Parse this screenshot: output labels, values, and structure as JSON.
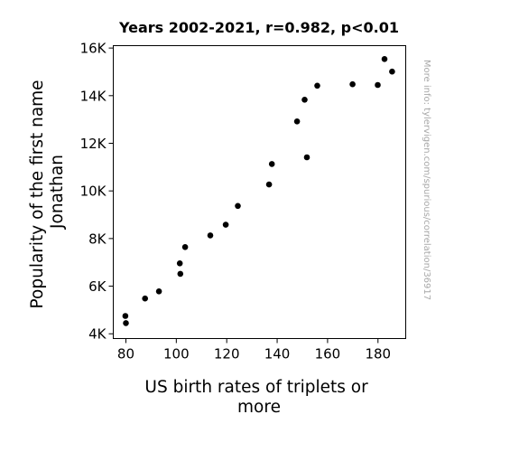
{
  "chart_data": {
    "type": "scatter",
    "title": "Years 2002-2021, r=0.982, p<0.01",
    "xlabel": [
      "US birth rates of triplets or",
      "more"
    ],
    "ylabel": [
      "Popularity of the first name",
      "Jonathan"
    ],
    "xlim": [
      75,
      191
    ],
    "ylim": [
      3800,
      16100
    ],
    "xticks": [
      {
        "value": 80,
        "label": "80"
      },
      {
        "value": 100,
        "label": "100"
      },
      {
        "value": 120,
        "label": "120"
      },
      {
        "value": 140,
        "label": "140"
      },
      {
        "value": 160,
        "label": "160"
      },
      {
        "value": 180,
        "label": "180"
      }
    ],
    "yticks": [
      {
        "value": 4000,
        "label": "4K"
      },
      {
        "value": 6000,
        "label": "6K"
      },
      {
        "value": 8000,
        "label": "8K"
      },
      {
        "value": 10000,
        "label": "10K"
      },
      {
        "value": 12000,
        "label": "12K"
      },
      {
        "value": 14000,
        "label": "14K"
      },
      {
        "value": 16000,
        "label": "16K"
      }
    ],
    "grid": false,
    "legend": "none",
    "marker_color": "#000000",
    "points": [
      {
        "x": 79.8,
        "y": 4750
      },
      {
        "x": 80.0,
        "y": 4450
      },
      {
        "x": 87.6,
        "y": 5480
      },
      {
        "x": 93.1,
        "y": 5780
      },
      {
        "x": 101.4,
        "y": 6960
      },
      {
        "x": 101.6,
        "y": 6520
      },
      {
        "x": 103.5,
        "y": 7640
      },
      {
        "x": 113.5,
        "y": 8130
      },
      {
        "x": 119.6,
        "y": 8580
      },
      {
        "x": 124.4,
        "y": 9370
      },
      {
        "x": 136.8,
        "y": 10270
      },
      {
        "x": 137.9,
        "y": 11130
      },
      {
        "x": 147.9,
        "y": 12920
      },
      {
        "x": 150.9,
        "y": 13830
      },
      {
        "x": 151.8,
        "y": 11410
      },
      {
        "x": 155.9,
        "y": 14420
      },
      {
        "x": 169.9,
        "y": 14480
      },
      {
        "x": 179.9,
        "y": 14450
      },
      {
        "x": 182.6,
        "y": 15540
      },
      {
        "x": 185.6,
        "y": 15010
      }
    ]
  },
  "side_note": "More info: tylervigen.com/spurious/correlation/36917"
}
